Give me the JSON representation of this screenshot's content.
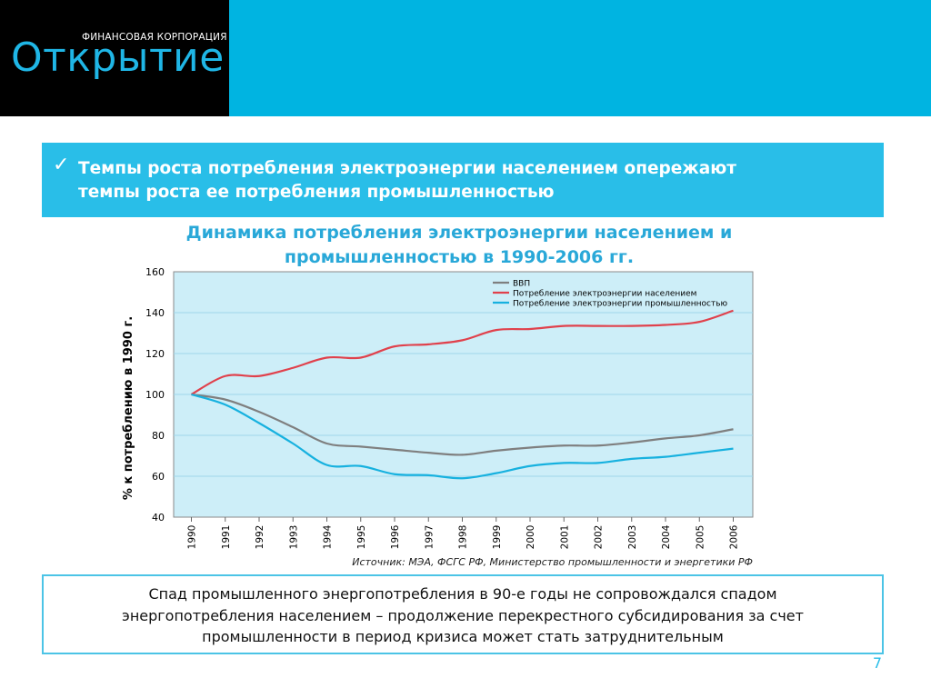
{
  "logo": {
    "main": "Открытие",
    "subtitle": "ФИНАНСОВАЯ КОРПОРАЦИЯ"
  },
  "headline": {
    "line1": "Темпы роста потребления электроэнергии населением опережают",
    "line2": "темпы роста ее потребления промышленностью"
  },
  "chart_title": {
    "line1": "Динамика потребления электроэнергии населением и",
    "line2": "промышленностью в 1990-2006 гг."
  },
  "source": "Источник: МЭА, ФСГС РФ, Министерство промышленности и энергетики РФ",
  "note": {
    "line1": "Спад промышленного энергопотребления в 90-е годы не сопровождался спадом",
    "line2": "энергопотребления населением – продолжение перекрестного субсидирования за счет",
    "line3": "промышленности в период кризиса может стать затруднительным"
  },
  "page_number": "7",
  "colors": {
    "brand_cyan": "#00b4e1",
    "plot_bg": "#cdeef8",
    "series_gdp": "#7f7f7f",
    "series_households": "#e0414c",
    "series_industry": "#17b1df"
  },
  "chart_data": {
    "type": "line",
    "ylabel": "% к потреблению в 1990 г.",
    "xlabel": "",
    "ylim": [
      40,
      160
    ],
    "yticks": [
      40,
      60,
      80,
      100,
      120,
      140,
      160
    ],
    "grid": true,
    "legend_position": "top-right",
    "categories": [
      "1990",
      "1991",
      "1992",
      "1993",
      "1994",
      "1995",
      "1996",
      "1997",
      "1998",
      "1999",
      "2000",
      "2001",
      "2002",
      "2003",
      "2004",
      "2005",
      "2006"
    ],
    "series": [
      {
        "name": "ВВП",
        "color": "#7f7f7f",
        "values": [
          100,
          97.5,
          91.5,
          84,
          76,
          74.5,
          73,
          71.5,
          70.5,
          72.5,
          74,
          75,
          75,
          76.5,
          78.5,
          80,
          83
        ]
      },
      {
        "name": "Потребление электроэнергии населением",
        "color": "#e0414c",
        "values": [
          100,
          109,
          109,
          113,
          118,
          118,
          123.5,
          124.5,
          126.5,
          131.5,
          132,
          133.5,
          133.5,
          133.5,
          134,
          135.5,
          141
        ]
      },
      {
        "name": "Потребление электроэнергии промышленностью",
        "color": "#17b1df",
        "values": [
          100,
          95,
          86,
          76,
          65.5,
          65,
          61,
          60.5,
          59,
          61.5,
          65,
          66.5,
          66.5,
          68.5,
          69.5,
          71.5,
          73.5
        ]
      }
    ]
  }
}
